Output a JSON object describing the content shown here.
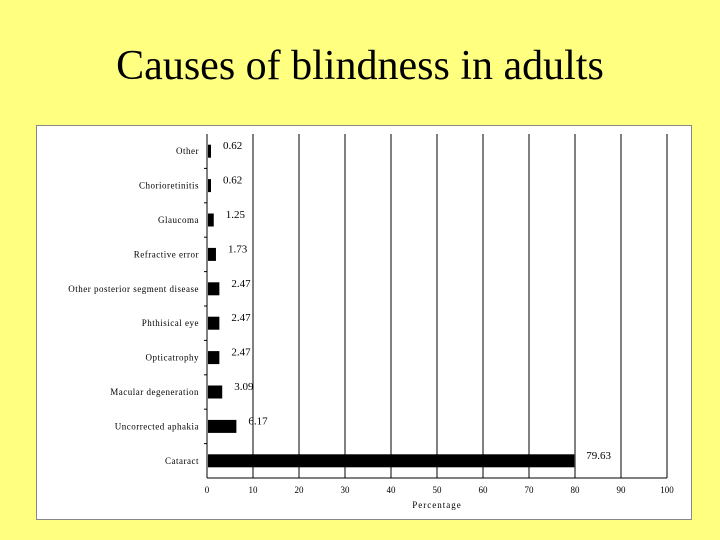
{
  "slide": {
    "title": "Causes of blindness in adults"
  },
  "chart_data": {
    "type": "bar",
    "orientation": "horizontal",
    "title": "",
    "xlabel": "Percentage",
    "ylabel": "",
    "xlim": [
      0,
      100
    ],
    "x_ticks": [
      0,
      10,
      20,
      30,
      40,
      50,
      60,
      70,
      80,
      90,
      100
    ],
    "grid": "vertical",
    "categories": [
      "Other",
      "Chorioretinitis",
      "Glaucoma",
      "Refractive error",
      "Other posterior segment disease",
      "Phthisical eye",
      "Opticatrophy",
      "Macular degeneration",
      "Uncorrected aphakia",
      "Cataract"
    ],
    "values": [
      0.62,
      0.62,
      1.25,
      1.73,
      2.47,
      2.47,
      2.47,
      3.09,
      6.17,
      79.63
    ],
    "value_labels": [
      "0.62",
      "0.62",
      "1.25",
      "1.73",
      "2.47",
      "2.47",
      "2.47",
      "3.09",
      "6.17",
      "79.63"
    ],
    "bar_color": "#000000"
  }
}
